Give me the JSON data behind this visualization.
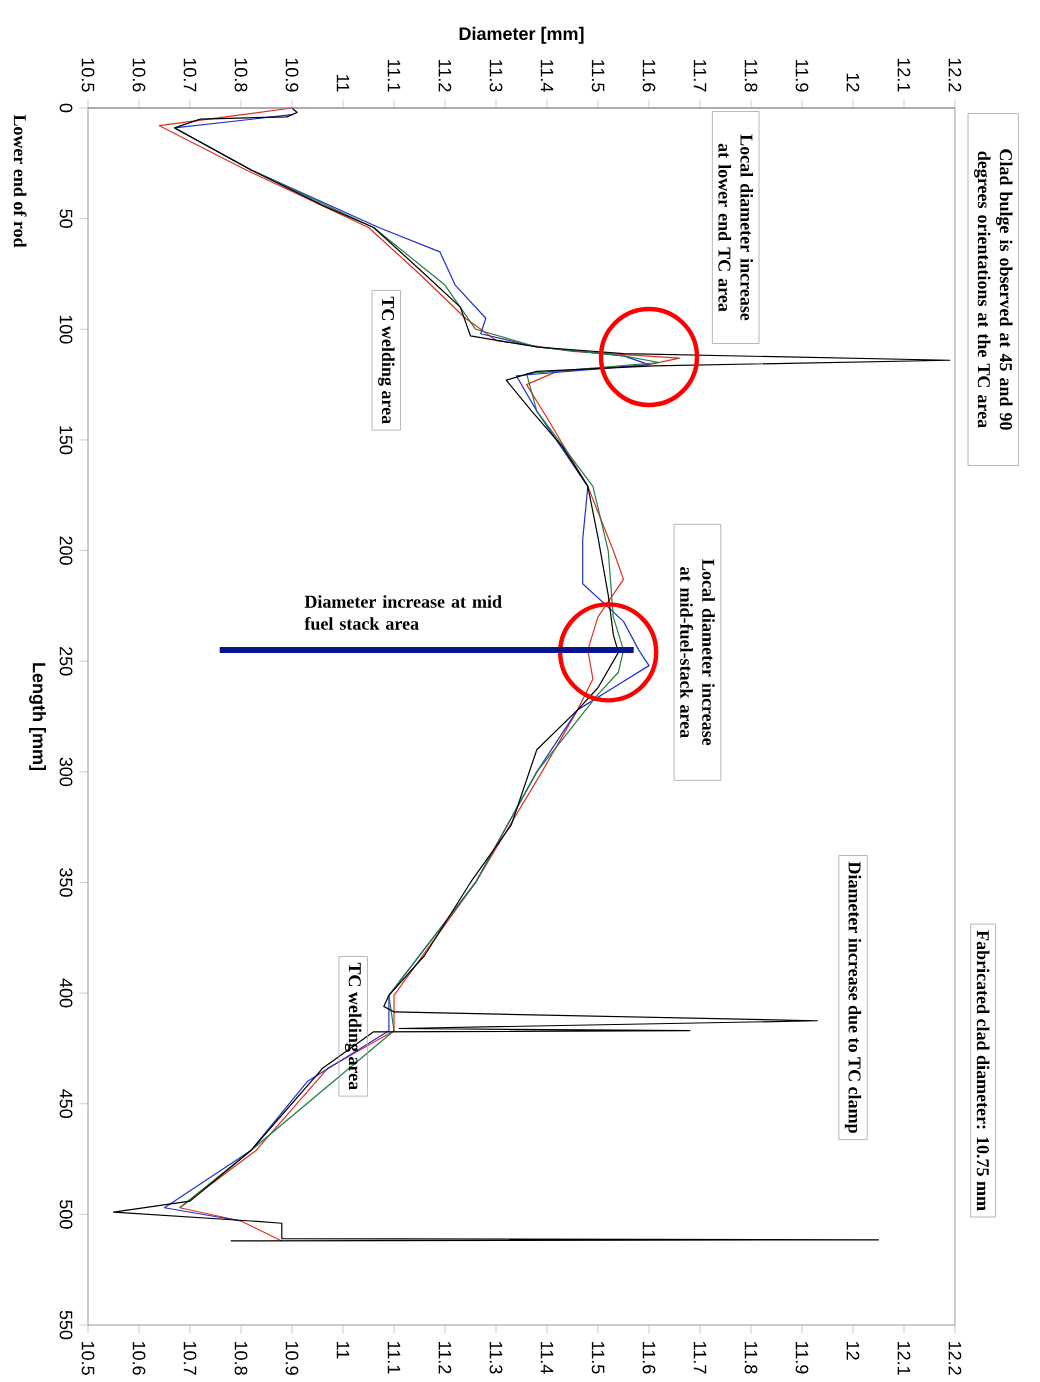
{
  "chart_data": {
    "type": "line",
    "x2label": "Diameter [mm]",
    "ylabel": "Length [mm]",
    "ylim": [
      550,
      0
    ],
    "yticks": [
      0,
      50,
      100,
      150,
      200,
      250,
      300,
      350,
      400,
      450,
      500,
      550
    ],
    "xlim": [
      10.5,
      12.2
    ],
    "xticks": [
      10.5,
      10.6,
      10.7,
      10.8,
      10.9,
      11,
      11.1,
      11.2,
      11.3,
      11.4,
      11.5,
      11.6,
      11.7,
      11.8,
      11.9,
      12,
      12.1,
      12.2
    ],
    "x2lim": [
      10.5,
      12.2
    ],
    "x2ticks": [
      10.5,
      10.6,
      10.7,
      10.8,
      10.9,
      11,
      11.1,
      11.2,
      11.3,
      11.4,
      11.5,
      11.6,
      11.7,
      11.8,
      11.9,
      12,
      12.1,
      12.2
    ],
    "line_style": "solid",
    "series": [
      {
        "color": "#e03020",
        "values": [
          0,
          8,
          28,
          54,
          75,
          95,
          105,
          110,
          113,
          116,
          119,
          125,
          140,
          171,
          200,
          213,
          230,
          245,
          258,
          272,
          300,
          350,
          401,
          417,
          434,
          471,
          497,
          503,
          512
        ],
        "x": [
          10.9,
          10.64,
          10.81,
          11.05,
          11.15,
          11.24,
          11.3,
          11.45,
          11.66,
          11.6,
          11.42,
          11.36,
          11.4,
          11.48,
          11.53,
          11.55,
          11.5,
          11.48,
          11.49,
          11.46,
          11.39,
          11.26,
          11.1,
          11.1,
          10.97,
          10.83,
          10.68,
          10.8,
          10.88
        ]
      },
      {
        "color": "#2030d0",
        "values": [
          3,
          9,
          28,
          54,
          65,
          80,
          95,
          102,
          108,
          112,
          116,
          121,
          137,
          171,
          195,
          215,
          232,
          245,
          252,
          262,
          272,
          300,
          350,
          401,
          417,
          440,
          471,
          497,
          503
        ],
        "x": [
          10.9,
          10.67,
          10.82,
          11.07,
          11.19,
          11.22,
          11.28,
          11.27,
          11.38,
          11.55,
          11.6,
          11.34,
          11.38,
          11.48,
          11.47,
          11.47,
          11.55,
          11.58,
          11.6,
          11.53,
          11.46,
          11.38,
          11.26,
          11.09,
          11.09,
          10.93,
          10.82,
          10.65,
          10.8
        ]
      },
      {
        "color": "#208040",
        "values": [
          9,
          28,
          54,
          80,
          100,
          108,
          112,
          115,
          120,
          137,
          171,
          200,
          230,
          245,
          255,
          265,
          300,
          350,
          401,
          417,
          471,
          497
        ],
        "x": [
          10.67,
          10.82,
          11.06,
          11.2,
          11.26,
          11.38,
          11.55,
          11.62,
          11.36,
          11.38,
          11.49,
          11.52,
          11.53,
          11.55,
          11.54,
          11.5,
          11.38,
          11.26,
          11.09,
          11.1,
          10.82,
          10.68
        ]
      },
      {
        "color": "#000000",
        "values": [
          0,
          2,
          4,
          5,
          9,
          28,
          44,
          54,
          75,
          90,
          103,
          108,
          111,
          114,
          116.5,
          119,
          123,
          137,
          153,
          171,
          194,
          220,
          238,
          246,
          262,
          272,
          290,
          324,
          350,
          383,
          401,
          406,
          408.5,
          412.5,
          416,
          417,
          417.5,
          434,
          471,
          494,
          499,
          503,
          504,
          511,
          511.5,
          512
        ],
        "x": [
          10.9,
          10.91,
          10.89,
          10.72,
          10.67,
          10.82,
          10.96,
          11.06,
          11.16,
          11.23,
          11.25,
          11.38,
          11.55,
          12.19,
          11.61,
          11.38,
          11.32,
          11.37,
          11.43,
          11.48,
          11.5,
          11.52,
          11.53,
          11.54,
          11.5,
          11.46,
          11.38,
          11.33,
          11.25,
          11.16,
          11.09,
          11.08,
          11.1,
          11.93,
          11.11,
          11.68,
          11.06,
          10.96,
          10.82,
          10.7,
          10.55,
          10.82,
          10.88,
          10.88,
          12.05,
          10.78
        ]
      }
    ],
    "annotations": [
      "Clad bulge is observed at 45 and 90 degrees orientations at the TC area",
      "Local diameter increase at lower end TC area",
      "TC welding area",
      "Local diameter increase at mid-fuel-stack area",
      "Diameter increase at mid fuel stack area",
      "TC welding area",
      "Diameter increase due to TC clamp",
      "Fabricated clad diameter: 10.75 mm",
      "Lower end of rod"
    ]
  }
}
